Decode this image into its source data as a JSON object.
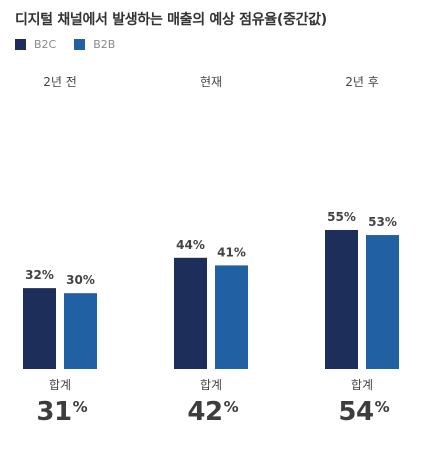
{
  "title": "디지털 채널에서 발생하는 매출의 예상 점유율(중간값)",
  "legend": [
    {
      "name": "B2C",
      "color": "#1e2e5b"
    },
    {
      "name": "B2B",
      "color": "#2160a3"
    }
  ],
  "chart_data": {
    "type": "bar",
    "title": "디지털 채널에서 발생하는 매출의 예상 점유율(중간값)",
    "categories": [
      "2년 전",
      "현재",
      "2년 후"
    ],
    "series": [
      {
        "name": "B2C",
        "values": [
          32,
          44,
          55
        ],
        "color": "#1e2e5b"
      },
      {
        "name": "B2B",
        "values": [
          30,
          41,
          53
        ],
        "color": "#2160a3"
      }
    ],
    "value_suffix": "%",
    "totals_label": "합계",
    "totals": [
      31,
      42,
      54
    ],
    "total_suffix": "%",
    "ylim": [
      0,
      55
    ],
    "grid": false,
    "legend_position": "top-left"
  }
}
